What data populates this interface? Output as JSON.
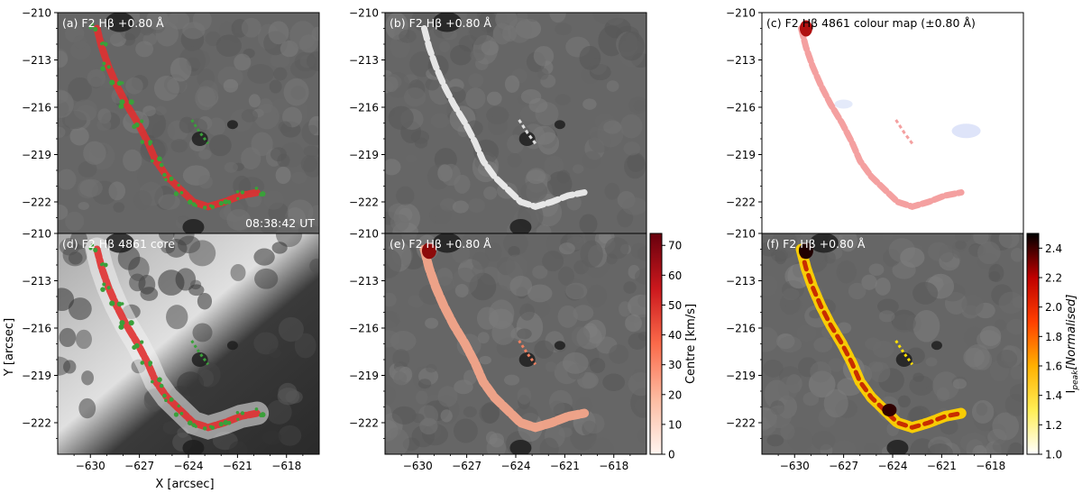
{
  "figure": {
    "shared_xlabel": "X [arcsec]",
    "shared_ylabel": "Y [arcsec]",
    "timestamp": "08:38:42 UT"
  },
  "chart_data": [
    {
      "id": "a",
      "type": "heatmap",
      "title": "(a) F2 Hβ +0.80 Å",
      "x_ticks": [
        -630,
        -627,
        -624,
        -621,
        -618
      ],
      "y_ticks": [
        -210,
        -213,
        -216,
        -219,
        -222
      ],
      "xlim": [
        -632,
        -616
      ],
      "ylim": [
        -224,
        -210
      ],
      "show_x_tick_labels": false,
      "show_y_tick_labels": true,
      "background": "grayscale continuum",
      "overlay": "red and green contours along ribbon",
      "annotation": "08:38:42 UT"
    },
    {
      "id": "b",
      "type": "heatmap",
      "title": "(b) F2 Hβ +0.80 Å",
      "x_ticks": [
        -630,
        -627,
        -624,
        -621,
        -618
      ],
      "y_ticks": [
        -210,
        -213,
        -216,
        -219,
        -222
      ],
      "xlim": [
        -632,
        -616
      ],
      "ylim": [
        -224,
        -210
      ],
      "show_x_tick_labels": false,
      "show_y_tick_labels": true,
      "background": "grayscale wing image with bright ribbon"
    },
    {
      "id": "c",
      "type": "heatmap",
      "title": "(c) F2 Hβ 4861 colour map (±0.80 Å)",
      "x_ticks": [
        -630,
        -627,
        -624,
        -621,
        -618
      ],
      "y_ticks": [
        -210,
        -213,
        -216,
        -219,
        -222
      ],
      "xlim": [
        -632,
        -616
      ],
      "ylim": [
        -224,
        -210
      ],
      "show_x_tick_labels": false,
      "show_y_tick_labels": true,
      "background": "white with red/blue colour map"
    },
    {
      "id": "d",
      "type": "heatmap",
      "title": "(d) F2 Hβ 4861 core",
      "x_ticks": [
        -630,
        -627,
        -624,
        -621,
        -618
      ],
      "y_ticks": [
        -210,
        -213,
        -216,
        -219,
        -222
      ],
      "xlim": [
        -632,
        -616
      ],
      "ylim": [
        -224,
        -210
      ],
      "show_x_tick_labels": true,
      "show_y_tick_labels": true,
      "background": "grayscale line core with bright ribbon",
      "overlay": "red and green contours along ribbon"
    },
    {
      "id": "e",
      "type": "heatmap",
      "title": "(e) F2 Hβ +0.80 Å",
      "x_ticks": [
        -630,
        -627,
        -624,
        -621,
        -618
      ],
      "y_ticks": [
        -210,
        -213,
        -216,
        -219,
        -222
      ],
      "xlim": [
        -632,
        -616
      ],
      "ylim": [
        -224,
        -210
      ],
      "show_x_tick_labels": true,
      "show_y_tick_labels": true,
      "overlay": "Centre velocity map on ribbon",
      "colorbar": {
        "label": "Centre [km/s]",
        "ticks": [
          0,
          10,
          20,
          30,
          40,
          50,
          60,
          70
        ],
        "range": [
          0,
          74
        ],
        "colors": [
          "#fff5f0",
          "#fcbba1",
          "#fb6a4a",
          "#cb181d",
          "#67000d"
        ]
      }
    },
    {
      "id": "f",
      "type": "heatmap",
      "title": "(f) F2 Hβ +0.80 Å",
      "x_ticks": [
        -630,
        -627,
        -624,
        -621,
        -618
      ],
      "y_ticks": [
        -210,
        -213,
        -216,
        -219,
        -222
      ],
      "xlim": [
        -632,
        -616
      ],
      "ylim": [
        -224,
        -210
      ],
      "show_x_tick_labels": true,
      "show_y_tick_labels": true,
      "overlay": "Peak intensity map on ribbon",
      "colorbar": {
        "label": "I_peak[Normalised]",
        "label_main": "I",
        "label_sub": "peak",
        "label_rest": "[Normalised]",
        "ticks": [
          1.0,
          1.2,
          1.4,
          1.6,
          1.8,
          2.0,
          2.2,
          2.4
        ],
        "range": [
          1.0,
          2.5
        ],
        "colors": [
          "#ffffff",
          "#ffee55",
          "#ffb000",
          "#ff4000",
          "#c00000",
          "#000000"
        ]
      }
    }
  ]
}
